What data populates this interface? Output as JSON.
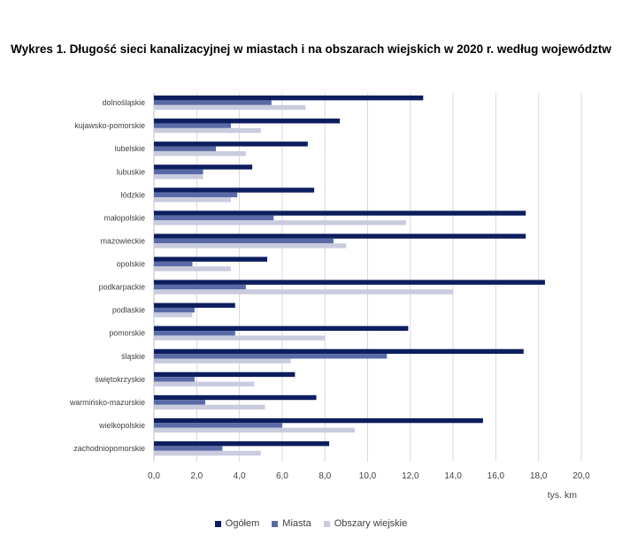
{
  "chart_data": {
    "type": "bar",
    "orientation": "horizontal",
    "title": "Wykres 1. Długość sieci kanalizacyjnej w miastach i na obszarach wiejskich w 2020 r. według województw",
    "xlabel": "tys. km",
    "xlim": [
      0,
      20
    ],
    "xticks": [
      "0,0",
      "2,0",
      "4,0",
      "6,0",
      "8,0",
      "10,0",
      "12,0",
      "14,0",
      "16,0",
      "18,0",
      "20,0"
    ],
    "grid": true,
    "legend_position": "bottom",
    "categories": [
      "dolnośląskie",
      "kujawsko-pomorskie",
      "lubelskie",
      "lubuskie",
      "łódzkie",
      "małopolskie",
      "mazowieckie",
      "opolskie",
      "podkarpackie",
      "podlaskie",
      "pomorskie",
      "śląskie",
      "świętokrzyskie",
      "warmińsko-mazurskie",
      "wielkopolskie",
      "zachodniopomorskie"
    ],
    "series": [
      {
        "name": "Ogółem",
        "color": "#0d1e5e",
        "values": [
          12.6,
          8.7,
          7.2,
          4.6,
          7.5,
          17.4,
          17.4,
          5.3,
          18.3,
          3.8,
          11.9,
          17.3,
          6.6,
          7.6,
          15.4,
          8.2
        ]
      },
      {
        "name": "Miasta",
        "color": "#5a6aa6",
        "values": [
          5.5,
          3.6,
          2.9,
          2.3,
          3.9,
          5.6,
          8.4,
          1.8,
          4.3,
          1.9,
          3.8,
          10.9,
          1.9,
          2.4,
          6.0,
          3.2
        ]
      },
      {
        "name": "Obszary wiejskie",
        "color": "#c9ccde",
        "values": [
          7.1,
          5.0,
          4.3,
          2.3,
          3.6,
          11.8,
          9.0,
          3.6,
          14.0,
          1.8,
          8.0,
          6.4,
          4.7,
          5.2,
          9.4,
          5.0
        ]
      }
    ]
  }
}
